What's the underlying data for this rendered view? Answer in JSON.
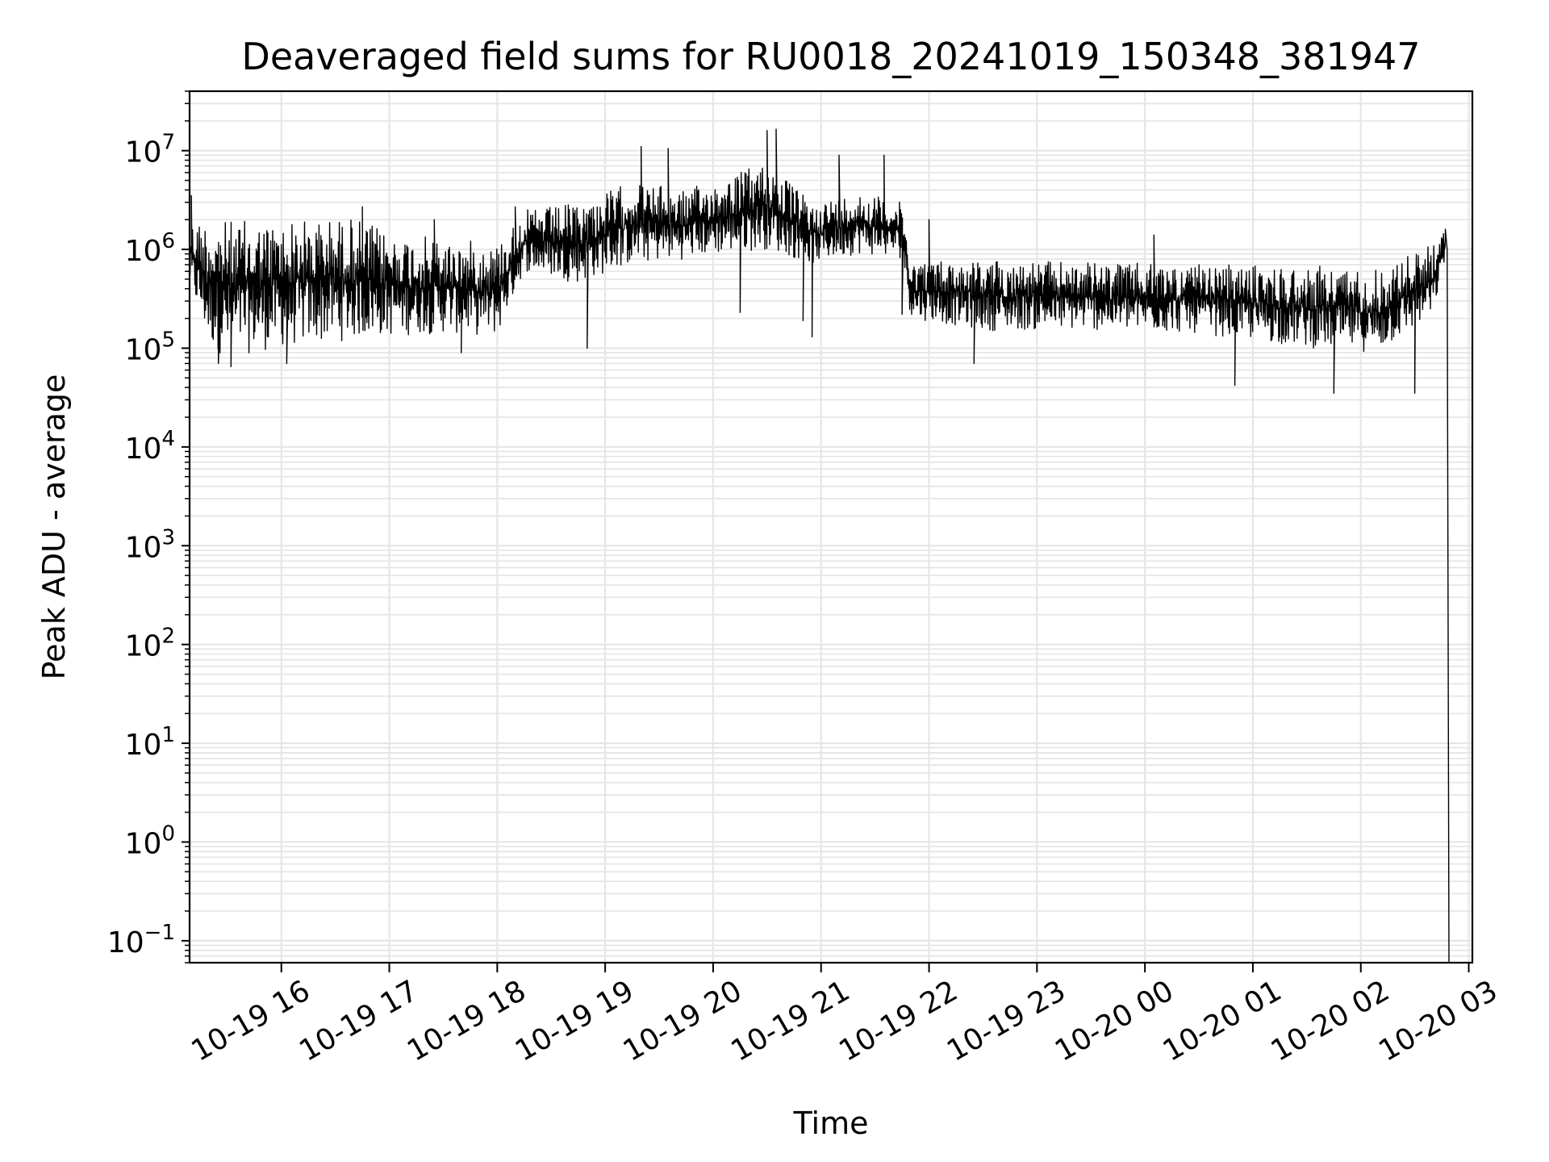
{
  "chart_data": {
    "type": "line",
    "title": "Deaveraged field sums for RU0018_20241019_150348_381947",
    "xlabel": "Time",
    "ylabel": "Peak ADU - average",
    "xscale": "time",
    "yscale": "log",
    "xlim": [
      "2024-10-19 15:09",
      "2024-10-20 03:02"
    ],
    "ylim": [
      0.06,
      40000000
    ],
    "grid": true,
    "legend": "none",
    "line_color": "#000000",
    "x_ticks": [
      "10-19 16",
      "10-19 17",
      "10-19 18",
      "10-19 19",
      "10-19 20",
      "10-19 21",
      "10-19 22",
      "10-19 23",
      "10-20 00",
      "10-20 01",
      "10-20 02",
      "10-20 03"
    ],
    "y_ticks": [
      {
        "value": 0.1,
        "mant": "10",
        "exp": "−1"
      },
      {
        "value": 1,
        "mant": "10",
        "exp": "0"
      },
      {
        "value": 10,
        "mant": "10",
        "exp": "1"
      },
      {
        "value": 100,
        "mant": "10",
        "exp": "2"
      },
      {
        "value": 1000,
        "mant": "10",
        "exp": "3"
      },
      {
        "value": 10000,
        "mant": "10",
        "exp": "4"
      },
      {
        "value": 100000,
        "mant": "10",
        "exp": "5"
      },
      {
        "value": 1000000,
        "mant": "10",
        "exp": "6"
      },
      {
        "value": 10000000,
        "mant": "10",
        "exp": "7"
      }
    ],
    "series": [
      {
        "band_envelope": [
          {
            "x": "2024-10-19 15:09",
            "low": 400000,
            "high": 2000000
          },
          {
            "x": "2024-10-19 15:20",
            "low": 100000,
            "high": 2200000
          },
          {
            "x": "2024-10-19 15:30",
            "low": 80000,
            "high": 2000000
          },
          {
            "x": "2024-10-19 16:00",
            "low": 100000,
            "high": 2000000
          },
          {
            "x": "2024-10-19 16:40",
            "low": 120000,
            "high": 2200000
          },
          {
            "x": "2024-10-19 17:00",
            "low": 130000,
            "high": 1500000
          },
          {
            "x": "2024-10-19 17:30",
            "low": 140000,
            "high": 1300000
          },
          {
            "x": "2024-10-19 18:00",
            "low": 130000,
            "high": 1200000
          },
          {
            "x": "2024-10-19 18:15",
            "low": 600000,
            "high": 2500000
          },
          {
            "x": "2024-10-19 18:45",
            "low": 450000,
            "high": 3000000
          },
          {
            "x": "2024-10-19 19:15",
            "low": 700000,
            "high": 5000000
          },
          {
            "x": "2024-10-19 19:45",
            "low": 800000,
            "high": 4000000
          },
          {
            "x": "2024-10-19 20:30",
            "low": 1000000,
            "high": 8000000
          },
          {
            "x": "2024-10-19 20:55",
            "low": 700000,
            "high": 3000000
          },
          {
            "x": "2024-10-19 21:20",
            "low": 900000,
            "high": 4000000
          },
          {
            "x": "2024-10-19 21:45",
            "low": 800000,
            "high": 3000000
          },
          {
            "x": "2024-10-19 21:50",
            "low": 200000,
            "high": 800000
          },
          {
            "x": "2024-10-19 22:30",
            "low": 150000,
            "high": 800000
          },
          {
            "x": "2024-10-19 23:30",
            "low": 150000,
            "high": 750000
          },
          {
            "x": "2024-10-20 00:30",
            "low": 140000,
            "high": 700000
          },
          {
            "x": "2024-10-20 01:30",
            "low": 100000,
            "high": 700000
          },
          {
            "x": "2024-10-20 02:10",
            "low": 90000,
            "high": 650000
          },
          {
            "x": "2024-10-20 02:40",
            "low": 200000,
            "high": 1200000
          },
          {
            "x": "2024-10-20 02:47",
            "low": 800000,
            "high": 1600000
          }
        ],
        "spikes": [
          {
            "x": "2024-10-19 15:10",
            "value": 3500000
          },
          {
            "x": "2024-10-19 15:25",
            "value": 70000
          },
          {
            "x": "2024-10-19 15:32",
            "value": 65000
          },
          {
            "x": "2024-10-19 16:03",
            "value": 70000
          },
          {
            "x": "2024-10-19 16:45",
            "value": 2700000
          },
          {
            "x": "2024-10-19 17:25",
            "value": 2000000
          },
          {
            "x": "2024-10-19 17:40",
            "value": 90000
          },
          {
            "x": "2024-10-19 18:10",
            "value": 2700000
          },
          {
            "x": "2024-10-19 18:50",
            "value": 100000
          },
          {
            "x": "2024-10-19 19:20",
            "value": 11000000
          },
          {
            "x": "2024-10-19 19:35",
            "value": 10500000
          },
          {
            "x": "2024-10-19 20:15",
            "value": 230000
          },
          {
            "x": "2024-10-19 20:30",
            "value": 16000000
          },
          {
            "x": "2024-10-19 20:35",
            "value": 16500000
          },
          {
            "x": "2024-10-19 20:50",
            "value": 190000
          },
          {
            "x": "2024-10-19 20:55",
            "value": 130000
          },
          {
            "x": "2024-10-19 21:10",
            "value": 9000000
          },
          {
            "x": "2024-10-19 21:35",
            "value": 9000000
          },
          {
            "x": "2024-10-19 21:45",
            "value": 220000
          },
          {
            "x": "2024-10-19 22:00",
            "value": 2000000
          },
          {
            "x": "2024-10-19 22:25",
            "value": 70000
          },
          {
            "x": "2024-10-20 00:05",
            "value": 1400000
          },
          {
            "x": "2024-10-20 00:50",
            "value": 42000
          },
          {
            "x": "2024-10-20 01:45",
            "value": 35000
          },
          {
            "x": "2024-10-20 02:30",
            "value": 35000
          }
        ],
        "drop": [
          {
            "x": "2024-10-20 02:47",
            "value": 1600000
          },
          {
            "x": "2024-10-20 02:48",
            "value": 1000000
          },
          {
            "x": "2024-10-20 02:49",
            "value": 0.06
          }
        ]
      }
    ]
  }
}
